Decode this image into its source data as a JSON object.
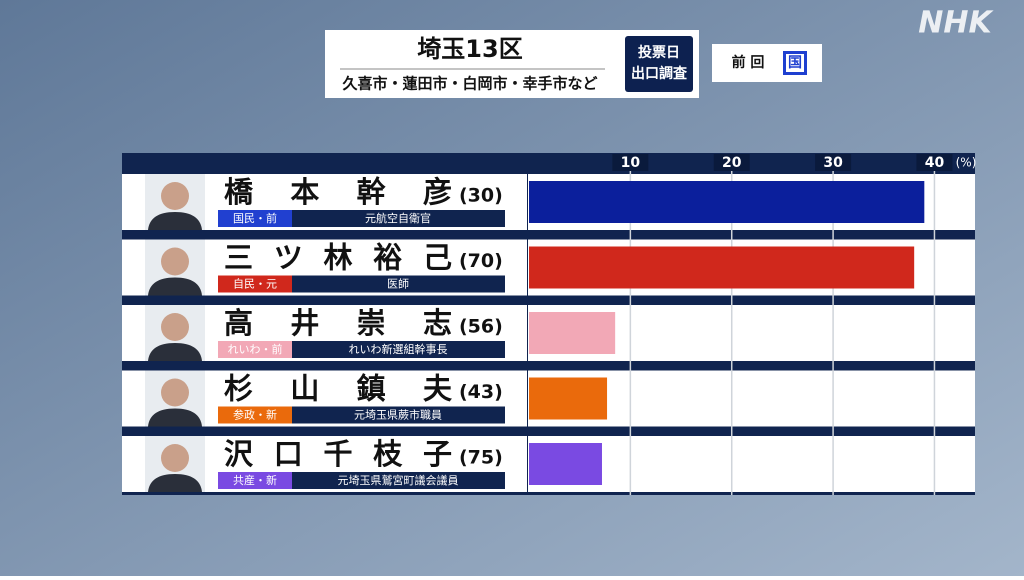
{
  "logo": "NHK",
  "header": {
    "title": "埼玉13区",
    "subtitle": "久喜市・蓮田市・白岡市・幸手市など",
    "badge": [
      "投票日",
      "出口調査"
    ],
    "previous_label": "前 回",
    "previous_party": "国"
  },
  "chart_data": {
    "type": "bar",
    "orientation": "horizontal",
    "categories": [
      "橋本幹彦",
      "三ツ林裕己",
      "高井崇志",
      "杉山鎮夫",
      "沢口千枝子"
    ],
    "values": [
      39,
      38,
      8.5,
      7.7,
      7.2
    ],
    "colors": [
      "#0b1f9c",
      "#d0281c",
      "#f2a8b6",
      "#ea6a0c",
      "#7a4ae2"
    ],
    "candidates": [
      {
        "age": "(30)",
        "party": "国民・前",
        "party_color": "#2140d0",
        "occupation": "元航空自衛官"
      },
      {
        "age": "(70)",
        "party": "自民・元",
        "party_color": "#d0281c",
        "occupation": "医師"
      },
      {
        "age": "(56)",
        "party": "れいわ・前",
        "party_color": "#f2a8b6",
        "occupation": "れいわ新選組幹事長"
      },
      {
        "age": "(43)",
        "party": "参政・新",
        "party_color": "#ea6a0c",
        "occupation": "元埼玉県蕨市職員"
      },
      {
        "age": "(75)",
        "party": "共産・新",
        "party_color": "#7a4ae2",
        "occupation": "元埼玉県鷲宮町議会議員"
      }
    ],
    "xlim": [
      0,
      44
    ],
    "xticks": [
      10,
      20,
      30,
      40
    ],
    "unit_label": "(%)",
    "grid": true
  }
}
